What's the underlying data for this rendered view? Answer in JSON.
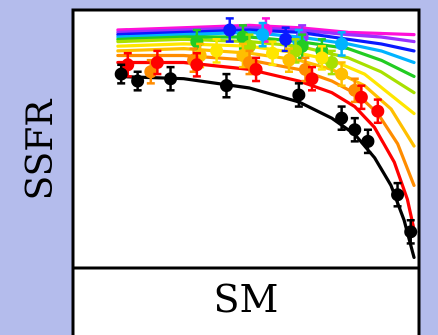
{
  "chart_data": {
    "type": "scatter",
    "title": "",
    "xlabel": "SM",
    "ylabel": "SSFR",
    "xlim": [
      0,
      1
    ],
    "ylim": [
      0,
      1
    ],
    "grid": false,
    "legend": "none",
    "series": [
      {
        "color": "#000000",
        "points": [
          [
            0.11,
            0.81,
            0.04
          ],
          [
            0.16,
            0.78,
            0.04
          ],
          [
            0.26,
            0.79,
            0.05
          ],
          [
            0.43,
            0.76,
            0.05
          ],
          [
            0.65,
            0.72,
            0.05
          ],
          [
            0.78,
            0.62,
            0.05
          ],
          [
            0.82,
            0.57,
            0.05
          ],
          [
            0.86,
            0.52,
            0.05
          ],
          [
            0.95,
            0.29,
            0.05
          ],
          [
            0.99,
            0.13,
            0.05
          ]
        ],
        "curve": [
          [
            0.1,
            0.8
          ],
          [
            0.3,
            0.79
          ],
          [
            0.5,
            0.75
          ],
          [
            0.65,
            0.69
          ],
          [
            0.75,
            0.62
          ],
          [
            0.82,
            0.55
          ],
          [
            0.88,
            0.45
          ],
          [
            0.93,
            0.33
          ],
          [
            0.97,
            0.18
          ],
          [
            1.0,
            0.02
          ]
        ]
      },
      {
        "color": "#ff0000",
        "points": [
          [
            0.13,
            0.85,
            0.05
          ],
          [
            0.22,
            0.86,
            0.05
          ],
          [
            0.34,
            0.85,
            0.05
          ],
          [
            0.52,
            0.83,
            0.05
          ],
          [
            0.69,
            0.79,
            0.05
          ],
          [
            0.84,
            0.71,
            0.05
          ],
          [
            0.89,
            0.65,
            0.05
          ]
        ],
        "curve": [
          [
            0.1,
            0.86
          ],
          [
            0.3,
            0.86
          ],
          [
            0.5,
            0.83
          ],
          [
            0.65,
            0.78
          ],
          [
            0.75,
            0.73
          ],
          [
            0.82,
            0.67
          ],
          [
            0.88,
            0.58
          ],
          [
            0.94,
            0.43
          ],
          [
            0.98,
            0.27
          ],
          [
            1.0,
            0.14
          ]
        ]
      },
      {
        "color": "#ff8c00",
        "points": [
          [
            0.2,
            0.82,
            0.05
          ],
          [
            0.33,
            0.87,
            0.05
          ],
          [
            0.5,
            0.86,
            0.05
          ],
          [
            0.67,
            0.83,
            0.05
          ],
          [
            0.82,
            0.74,
            0.05
          ]
        ],
        "curve": [
          [
            0.1,
            0.89
          ],
          [
            0.3,
            0.89
          ],
          [
            0.5,
            0.87
          ],
          [
            0.65,
            0.83
          ],
          [
            0.75,
            0.78
          ],
          [
            0.83,
            0.72
          ],
          [
            0.89,
            0.64
          ],
          [
            0.95,
            0.51
          ],
          [
            1.0,
            0.33
          ]
        ]
      },
      {
        "color": "#ffbf00",
        "points": [
          [
            0.35,
            0.89,
            0.05
          ],
          [
            0.48,
            0.89,
            0.05
          ],
          [
            0.62,
            0.87,
            0.05
          ],
          [
            0.78,
            0.81,
            0.05
          ]
        ],
        "curve": [
          [
            0.1,
            0.91
          ],
          [
            0.3,
            0.92
          ],
          [
            0.5,
            0.9
          ],
          [
            0.65,
            0.87
          ],
          [
            0.75,
            0.83
          ],
          [
            0.85,
            0.76
          ],
          [
            0.93,
            0.66
          ],
          [
            1.0,
            0.5
          ]
        ]
      },
      {
        "color": "#ffe600",
        "points": [
          [
            0.4,
            0.91,
            0.05
          ],
          [
            0.57,
            0.9,
            0.05
          ],
          [
            0.72,
            0.88,
            0.05
          ]
        ],
        "curve": [
          [
            0.1,
            0.93
          ],
          [
            0.3,
            0.94
          ],
          [
            0.5,
            0.93
          ],
          [
            0.65,
            0.9
          ],
          [
            0.75,
            0.87
          ],
          [
            0.85,
            0.81
          ],
          [
            1.0,
            0.64
          ]
        ]
      },
      {
        "color": "#a8e000",
        "points": [
          [
            0.5,
            0.93,
            0.05
          ],
          [
            0.64,
            0.91,
            0.05
          ],
          [
            0.75,
            0.86,
            0.05
          ]
        ],
        "curve": [
          [
            0.1,
            0.95
          ],
          [
            0.3,
            0.96
          ],
          [
            0.5,
            0.95
          ],
          [
            0.65,
            0.93
          ],
          [
            0.8,
            0.88
          ],
          [
            0.9,
            0.82
          ],
          [
            1.0,
            0.73
          ]
        ]
      },
      {
        "color": "#22cc22",
        "points": [
          [
            0.34,
            0.95,
            0.05
          ],
          [
            0.48,
            0.97,
            0.05
          ],
          [
            0.66,
            0.93,
            0.05
          ],
          [
            0.72,
            0.91,
            0.05
          ]
        ],
        "curve": [
          [
            0.1,
            0.96
          ],
          [
            0.3,
            0.97
          ],
          [
            0.5,
            0.97
          ],
          [
            0.65,
            0.95
          ],
          [
            0.8,
            0.92
          ],
          [
            0.9,
            0.87
          ],
          [
            1.0,
            0.8
          ]
        ]
      },
      {
        "color": "#00b3ff",
        "points": [
          [
            0.54,
            0.98,
            0.05
          ],
          [
            0.65,
            0.95,
            0.05
          ],
          [
            0.78,
            0.94,
            0.05
          ]
        ],
        "curve": [
          [
            0.1,
            0.97
          ],
          [
            0.3,
            0.98
          ],
          [
            0.5,
            0.99
          ],
          [
            0.65,
            0.97
          ],
          [
            0.8,
            0.94
          ],
          [
            0.9,
            0.91
          ],
          [
            1.0,
            0.86
          ]
        ]
      },
      {
        "color": "#0a1aff",
        "points": [
          [
            0.44,
            1.0,
            0.05
          ],
          [
            0.61,
            0.96,
            0.05
          ]
        ],
        "curve": [
          [
            0.1,
            0.98
          ],
          [
            0.3,
            0.99
          ],
          [
            0.5,
            1.0
          ],
          [
            0.65,
            0.99
          ],
          [
            0.8,
            0.96
          ],
          [
            0.9,
            0.94
          ],
          [
            1.0,
            0.91
          ]
        ]
      },
      {
        "color": "#9b30ff",
        "points": [
          [
            0.66,
            0.97,
            0.05
          ]
        ],
        "curve": [
          [
            0.1,
            0.99
          ],
          [
            0.3,
            1.0
          ],
          [
            0.5,
            1.01
          ],
          [
            0.65,
            1.0
          ],
          [
            0.8,
            0.98
          ],
          [
            0.9,
            0.97
          ],
          [
            1.0,
            0.95
          ]
        ]
      },
      {
        "color": "#ff10d8",
        "points": [
          [
            0.55,
            1.0,
            0.05
          ]
        ],
        "curve": [
          [
            0.1,
            1.0
          ],
          [
            0.3,
            1.01
          ],
          [
            0.5,
            1.02
          ],
          [
            0.65,
            1.01
          ],
          [
            0.8,
            0.99
          ],
          [
            1.0,
            0.98
          ]
        ]
      }
    ]
  }
}
